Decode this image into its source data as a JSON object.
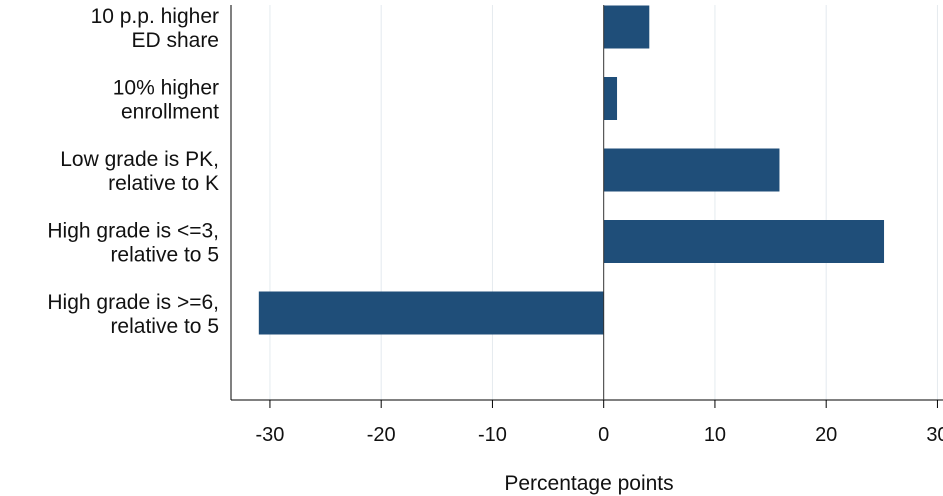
{
  "chart_data": {
    "type": "bar",
    "orientation": "horizontal",
    "categories": [
      [
        "10 p.p. higher",
        "ED share"
      ],
      [
        "10% higher",
        "enrollment"
      ],
      [
        "Low grade is PK,",
        "relative to K"
      ],
      [
        "High grade is <=3,",
        "relative to 5"
      ],
      [
        "High grade is >=6,",
        "relative to 5"
      ]
    ],
    "values": [
      4.1,
      1.2,
      15.8,
      25.2,
      -31.0
    ],
    "title": "",
    "xlabel": "Percentage points",
    "ylabel": "",
    "xlim": [
      -33.5,
      30.5
    ],
    "xticks": [
      -30,
      -20,
      -10,
      0,
      10,
      20,
      30
    ],
    "grid": "vertical",
    "bar_color": "#1f4e79"
  }
}
